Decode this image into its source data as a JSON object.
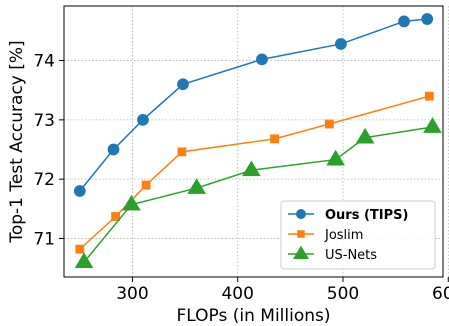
{
  "chart_data": {
    "type": "line",
    "title": "",
    "xlabel": "FLOPs (in Millions)",
    "ylabel": "Top-1 Test Accuracy [%]",
    "xlim": [
      235,
      595
    ],
    "ylim": [
      70.35,
      74.92
    ],
    "xticks": [
      300,
      400,
      500,
      600
    ],
    "yticks": [
      71,
      72,
      73,
      74
    ],
    "grid": true,
    "legend_position": "lower-right",
    "series": [
      {
        "name": "Ours (TIPS)",
        "bold": true,
        "color": "#1f77b4",
        "marker": "circle",
        "x": [
          250,
          282,
          310,
          348,
          423,
          498,
          558,
          580
        ],
        "y": [
          71.8,
          72.5,
          73.0,
          73.6,
          74.02,
          74.28,
          74.66,
          74.7
        ]
      },
      {
        "name": "Joslim",
        "bold": false,
        "color": "#ff7f0e",
        "marker": "square",
        "x": [
          250,
          284,
          313,
          347,
          435,
          487,
          582
        ],
        "y": [
          70.82,
          71.37,
          71.9,
          72.46,
          72.68,
          72.93,
          73.4
        ]
      },
      {
        "name": "US-Nets",
        "bold": false,
        "color": "#2ca02c",
        "marker": "triangle",
        "x": [
          254,
          299,
          361,
          413,
          493,
          521,
          585
        ],
        "y": [
          70.6,
          71.57,
          71.85,
          72.15,
          72.33,
          72.7,
          72.88
        ]
      }
    ]
  }
}
